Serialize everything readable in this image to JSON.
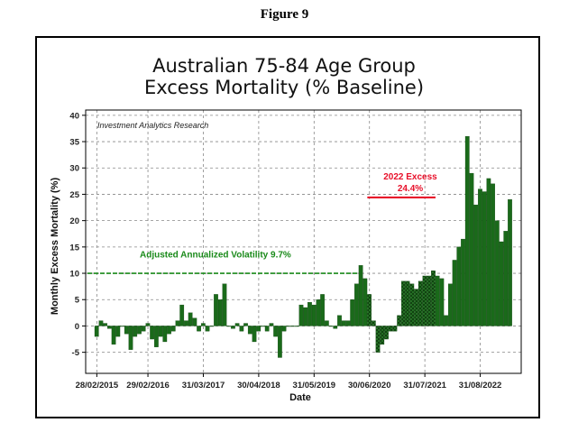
{
  "figure_label": "Figure 9",
  "chart_data": {
    "type": "bar",
    "title": [
      "Australian 75-84 Age Group",
      "Excess Mortality (% Baseline)"
    ],
    "xlabel": "Date",
    "ylabel": "Monthly Excess Mortality (%)",
    "ylim": [
      -9,
      41
    ],
    "yticks": [
      -5,
      0,
      5,
      10,
      15,
      20,
      25,
      30,
      35,
      40
    ],
    "xticks": [
      "28/02/2015",
      "29/02/2016",
      "31/03/2017",
      "30/04/2018",
      "31/05/2019",
      "30/06/2020",
      "31/07/2021",
      "31/08/2022"
    ],
    "grid": true,
    "credit": "Investment Analytics Research",
    "start_month": "02/2015",
    "values": [
      -2,
      1,
      0.5,
      -0.5,
      -3.5,
      -2,
      0,
      -1.5,
      -4.5,
      -2,
      -1.5,
      -1,
      0.5,
      -2.5,
      -4,
      -2,
      -3,
      -1.5,
      -1,
      1,
      4,
      1,
      2.5,
      1.5,
      -1,
      0.5,
      -1,
      0,
      6,
      5,
      8,
      0,
      -0.5,
      0.5,
      -1,
      0.5,
      -1.5,
      -3,
      -1,
      0,
      -1,
      0.5,
      -2,
      -6,
      -1,
      0,
      0,
      0,
      4,
      3.5,
      4.5,
      4,
      5,
      6,
      1,
      0,
      -0.5,
      2,
      1,
      1,
      5,
      8,
      11.5,
      9,
      6,
      1,
      -5,
      -3.5,
      -2.5,
      -1,
      -1,
      2,
      8.5,
      8.5,
      8,
      7,
      8.5,
      9.5,
      9.5,
      10.5,
      9.5,
      9,
      2,
      8,
      12.5,
      15,
      16.5,
      36,
      29,
      23,
      26,
      25.5,
      28,
      27,
      20,
      16,
      18,
      24
    ],
    "bar_color": "#1a6a1a",
    "crosshatched_range": [
      "06/2020",
      "09/2021"
    ],
    "annotations": [
      {
        "text": "Adjusted Annualized Volatility 9.7%",
        "color": "#1a8a1a",
        "level": 10,
        "from": "02/2015",
        "to": "04/2020"
      },
      {
        "text": "2022 Excess",
        "text2": "24.4%",
        "color": "#e8102a",
        "level": 24.4,
        "from": "06/2020",
        "to": "10/2021"
      }
    ]
  }
}
